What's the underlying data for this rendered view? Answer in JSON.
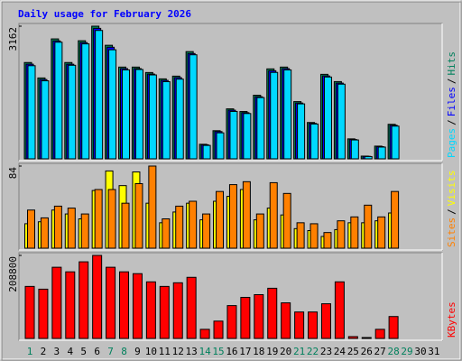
{
  "chart_data": {
    "type": "bar",
    "title": "Daily usage for February 2026",
    "categories": [
      "1",
      "2",
      "3",
      "4",
      "5",
      "6",
      "7",
      "8",
      "9",
      "10",
      "11",
      "12",
      "13",
      "14",
      "15",
      "16",
      "17",
      "18",
      "19",
      "20",
      "21",
      "22",
      "23",
      "24",
      "25",
      "26",
      "27",
      "28",
      "29",
      "30",
      "31"
    ],
    "category_colors": [
      "#00805c",
      "#000000",
      "#000000",
      "#000000",
      "#000000",
      "#000000",
      "#00805c",
      "#00805c",
      "#000000",
      "#000000",
      "#000000",
      "#000000",
      "#000000",
      "#00805c",
      "#00805c",
      "#000000",
      "#000000",
      "#000000",
      "#000000",
      "#000000",
      "#00805c",
      "#00805c",
      "#000000",
      "#000000",
      "#000000",
      "#000000",
      "#000000",
      "#00805c",
      "#00805c",
      "#000000",
      "#000000"
    ],
    "legend_separator": "/",
    "panels": [
      {
        "ylim": [
          0,
          3162
        ],
        "yticks": [
          3162
        ],
        "series": [
          {
            "name": "Hits",
            "color": "#00805c",
            "values": [
              2296,
              1928,
              2859,
              2296,
              2815,
              3162,
              2707,
              2187,
              2187,
              2057,
              1906,
              1971,
              2556,
              347,
              671,
              1191,
              1128,
              1516,
              2144,
              2187,
              1364,
              866,
              2014,
              1841,
              476,
              65,
              303,
              823,
              null,
              null,
              null
            ]
          },
          {
            "name": "Files",
            "color": "#0000ff",
            "values": [
              2256,
              1890,
              2810,
              2255,
              2770,
              3110,
              2660,
              2150,
              2150,
              2020,
              1870,
              1935,
              2510,
              335,
              650,
              1160,
              1100,
              1480,
              2100,
              2150,
              1330,
              845,
              1975,
              1805,
              460,
              60,
              290,
              800,
              null,
              null,
              null
            ]
          },
          {
            "name": "Pages",
            "color": "#00d8ff",
            "values": [
              2220,
              1860,
              2780,
              2230,
              2740,
              3060,
              2600,
              2120,
              2130,
              2000,
              1840,
              1900,
              2480,
              320,
              620,
              1130,
              1080,
              1460,
              2060,
              2120,
              1310,
              830,
              1950,
              1780,
              450,
              55,
              280,
              780,
              null,
              null,
              null
            ]
          }
        ]
      },
      {
        "ylim": [
          0,
          84
        ],
        "yticks": [
          84
        ],
        "series": [
          {
            "name": "Visits",
            "color": "#ffff00",
            "values": [
              25,
              27,
              39,
              35,
              30,
              59,
              79,
              64,
              78,
              46,
              26,
              37,
              46,
              29,
              48,
              53,
              60,
              29,
              41,
              34,
              20,
              18,
              12,
              19,
              26,
              26,
              28,
              36,
              null,
              null,
              null
            ]
          },
          {
            "name": "Sites",
            "color": "#ff8000",
            "values": [
              39,
              31,
              43,
              41,
              35,
              60,
              60,
              46,
              66,
              84,
              30,
              43,
              48,
              35,
              58,
              65,
              68,
              35,
              67,
              56,
              26,
              25,
              16,
              28,
              32,
              44,
              32,
              58,
              null,
              null,
              null
            ]
          }
        ]
      },
      {
        "ylim": [
          0,
          208800
        ],
        "yticks": [
          208800
        ],
        "series": [
          {
            "name": "KBytes",
            "color": "#ff0000",
            "values": [
              130800,
              123900,
              179000,
              167500,
              192700,
              208800,
              179000,
              167500,
              162900,
              142300,
              130800,
              140000,
              153700,
              22900,
              43600,
              82600,
              103300,
              110100,
              126200,
              89500,
              66500,
              66500,
              87200,
              142300,
              4600,
              2300,
              22900,
              55100,
              null,
              null,
              null
            ]
          }
        ]
      }
    ]
  }
}
